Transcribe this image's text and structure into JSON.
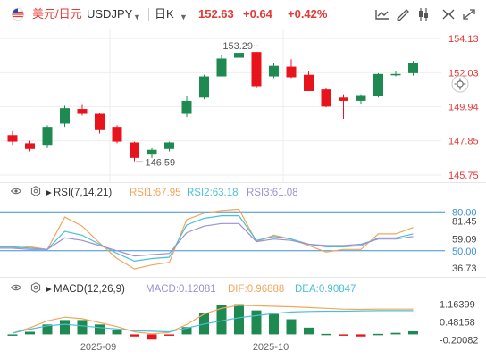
{
  "header": {
    "symbol_name": "美元/日元",
    "symbol_code": "USDJPY",
    "timeframe": "日K",
    "last": "152.63",
    "change": "+0.64",
    "change_pct": "+0.42%"
  },
  "colors": {
    "up": "#1e8a52",
    "down": "#e8141c",
    "rsi1": "#f5a55a",
    "rsi2": "#49c0d8",
    "rsi3": "#9e8fd2",
    "macd": "#9e8fd2",
    "dif": "#f5a55a",
    "dea": "#49c0d8",
    "ref": "#3d8fd9"
  },
  "chart_data": [
    {
      "type": "candlestick",
      "price_axis_ticks": [
        "154.13",
        "152.03",
        "149.94",
        "147.85",
        "145.75"
      ],
      "time_axis_ticks": [
        "2025-09",
        "2025-10"
      ],
      "annotations": {
        "high": "153.29",
        "low": "146.59"
      },
      "candles": [
        {
          "o": 148.2,
          "h": 148.45,
          "c": 147.8,
          "l": 147.6
        },
        {
          "o": 147.7,
          "h": 147.85,
          "c": 147.35,
          "l": 147.2
        },
        {
          "o": 147.6,
          "h": 148.8,
          "c": 148.7,
          "l": 147.4
        },
        {
          "o": 148.9,
          "h": 150.0,
          "c": 149.85,
          "l": 148.7
        },
        {
          "o": 149.8,
          "h": 150.05,
          "c": 149.5,
          "l": 149.4
        },
        {
          "o": 149.5,
          "h": 149.55,
          "c": 148.5,
          "l": 148.3
        },
        {
          "o": 148.7,
          "h": 148.8,
          "c": 147.8,
          "l": 147.7
        },
        {
          "o": 147.75,
          "h": 147.8,
          "c": 146.8,
          "l": 146.59
        },
        {
          "o": 147.0,
          "h": 147.4,
          "c": 147.3,
          "l": 146.8
        },
        {
          "o": 147.35,
          "h": 147.8,
          "c": 147.75,
          "l": 147.2
        },
        {
          "o": 149.5,
          "h": 150.6,
          "c": 150.3,
          "l": 149.3
        },
        {
          "o": 150.5,
          "h": 151.9,
          "c": 151.8,
          "l": 150.4
        },
        {
          "o": 151.8,
          "h": 153.1,
          "c": 152.9,
          "l": 151.8
        },
        {
          "o": 152.95,
          "h": 153.29,
          "c": 153.25,
          "l": 152.9
        },
        {
          "o": 153.3,
          "h": 153.3,
          "c": 151.2,
          "l": 151.1
        },
        {
          "o": 151.8,
          "h": 152.6,
          "c": 152.45,
          "l": 151.7
        },
        {
          "o": 152.4,
          "h": 152.85,
          "c": 151.75,
          "l": 151.7
        },
        {
          "o": 151.9,
          "h": 152.1,
          "c": 150.9,
          "l": 150.9
        },
        {
          "o": 151.0,
          "h": 151.1,
          "c": 149.95,
          "l": 149.9
        },
        {
          "o": 150.5,
          "h": 150.7,
          "c": 150.3,
          "l": 149.2
        },
        {
          "o": 150.3,
          "h": 150.7,
          "c": 150.65,
          "l": 150.1
        },
        {
          "o": 150.6,
          "h": 152.0,
          "c": 151.95,
          "l": 150.5
        },
        {
          "o": 151.9,
          "h": 152.1,
          "c": 151.95,
          "l": 151.8
        },
        {
          "o": 152.0,
          "h": 152.75,
          "c": 152.63,
          "l": 151.85
        }
      ]
    },
    {
      "type": "line",
      "label": "RSI(7,14,21)",
      "values_text": [
        "RSI1:67.95",
        "RSI2:63.18",
        "RSI3:61.08"
      ],
      "axis_ticks": [
        "80.00",
        "81.45",
        "59.09",
        "50.00",
        "36.73"
      ],
      "reference_lines": [
        80,
        50
      ],
      "series": [
        {
          "name": "RSI1",
          "values": [
            52,
            53,
            51,
            76,
            69,
            56,
            44,
            36,
            39,
            41,
            74,
            79,
            81,
            82,
            57,
            62,
            59,
            54,
            49,
            51,
            51,
            63,
            63,
            68
          ]
        },
        {
          "name": "RSI2",
          "values": [
            53,
            52,
            51,
            65,
            62,
            55,
            48,
            42,
            44,
            45,
            70,
            75,
            77,
            77,
            58,
            61,
            59,
            55,
            53,
            53,
            54,
            60,
            60,
            63
          ]
        },
        {
          "name": "RSI3",
          "values": [
            52,
            51,
            51,
            60,
            58,
            54,
            50,
            46,
            47,
            48,
            64,
            69,
            71,
            71,
            57,
            59,
            58,
            55,
            54,
            54,
            55,
            59,
            59,
            61
          ]
        }
      ]
    },
    {
      "type": "bar",
      "label": "MACD(12,26,9)",
      "values_text": [
        "MACD:0.12081",
        "DIF:0.96888",
        "DEA:0.90847"
      ],
      "axis_ticks": [
        "1.16399",
        "0.48158",
        "-0.20082"
      ],
      "series": [
        {
          "name": "MACD",
          "values": [
            0.0,
            0.1,
            0.38,
            0.55,
            0.55,
            0.38,
            0.18,
            -0.08,
            -0.2,
            -0.05,
            0.28,
            0.82,
            1.12,
            1.16,
            0.92,
            0.78,
            0.58,
            0.26,
            0.02,
            -0.05,
            -0.08,
            0.02,
            0.06,
            0.12
          ]
        },
        {
          "name": "DIF",
          "values": [
            0.05,
            0.25,
            0.52,
            0.66,
            0.6,
            0.45,
            0.3,
            0.1,
            0.02,
            0.08,
            0.38,
            0.78,
            1.0,
            1.12,
            1.1,
            1.08,
            1.06,
            1.03,
            1.0,
            0.97,
            0.96,
            0.97,
            0.97,
            0.97
          ]
        },
        {
          "name": "DEA",
          "values": [
            0.05,
            0.2,
            0.33,
            0.39,
            0.33,
            0.26,
            0.21,
            0.14,
            0.12,
            0.1,
            0.24,
            0.4,
            0.52,
            0.64,
            0.72,
            0.8,
            0.86,
            0.88,
            0.89,
            0.89,
            0.9,
            0.91,
            0.91,
            0.91
          ]
        }
      ]
    }
  ]
}
